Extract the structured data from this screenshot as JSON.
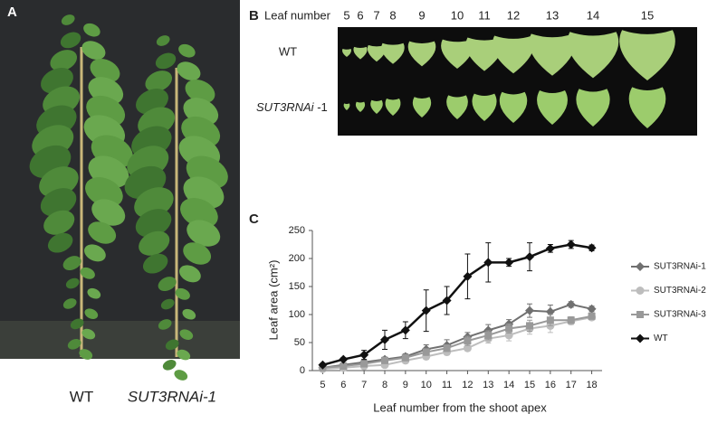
{
  "panel_a": {
    "letter": "A",
    "captions": [
      "WT",
      "SUT3RNAi-1"
    ]
  },
  "panel_b": {
    "letter": "B",
    "heading": "Leaf number",
    "leaf_numbers": [
      5,
      6,
      7,
      8,
      9,
      10,
      11,
      12,
      13,
      14,
      15
    ],
    "rows": [
      {
        "label": "WT"
      },
      {
        "label_italic": "SUT3RNAi",
        "label_rest": " -1"
      }
    ]
  },
  "panel_c": {
    "letter": "C"
  },
  "chart_data": {
    "type": "line",
    "xlabel": "Leaf number from the shoot apex",
    "ylabel": "Leaf area (cm²)",
    "x": [
      5,
      6,
      7,
      8,
      9,
      10,
      11,
      12,
      13,
      14,
      15,
      16,
      17,
      18
    ],
    "xlim": [
      4.5,
      18.5
    ],
    "xticks": [
      5,
      6,
      7,
      8,
      9,
      10,
      11,
      12,
      13,
      14,
      15,
      16,
      17,
      18
    ],
    "ylim": [
      0,
      250
    ],
    "yticks": [
      0,
      50,
      100,
      150,
      200,
      250
    ],
    "grid": false,
    "series": [
      {
        "name": "SUT3RNAi-1",
        "color": "#707070",
        "marker": "diamond",
        "values": [
          5,
          10,
          15,
          20,
          25,
          38,
          45,
          60,
          72,
          83,
          107,
          105,
          118,
          110
        ],
        "errors": [
          3,
          3,
          4,
          4,
          5,
          8,
          10,
          8,
          10,
          8,
          12,
          12,
          5,
          5
        ]
      },
      {
        "name": "SUT3RNAi-2",
        "color": "#bdbdbd",
        "marker": "circle",
        "values": [
          3,
          5,
          8,
          10,
          18,
          25,
          33,
          40,
          57,
          63,
          75,
          80,
          88,
          95
        ],
        "errors": [
          2,
          2,
          3,
          3,
          5,
          5,
          5,
          5,
          8,
          10,
          10,
          12,
          6,
          5
        ]
      },
      {
        "name": "SUT3RNAi-3",
        "color": "#999999",
        "marker": "square",
        "values": [
          5,
          8,
          12,
          18,
          23,
          33,
          40,
          53,
          63,
          75,
          80,
          90,
          90,
          97
        ],
        "errors": [
          2,
          3,
          3,
          4,
          5,
          6,
          6,
          8,
          8,
          8,
          10,
          10,
          6,
          5
        ]
      },
      {
        "name": "WT",
        "color": "#111111",
        "marker": "diamond",
        "values": [
          10,
          20,
          28,
          55,
          72,
          107,
          125,
          168,
          193,
          193,
          203,
          218,
          225,
          219
        ],
        "errors": [
          3,
          3,
          8,
          17,
          15,
          37,
          25,
          40,
          35,
          7,
          25,
          7,
          7,
          5
        ]
      }
    ]
  }
}
